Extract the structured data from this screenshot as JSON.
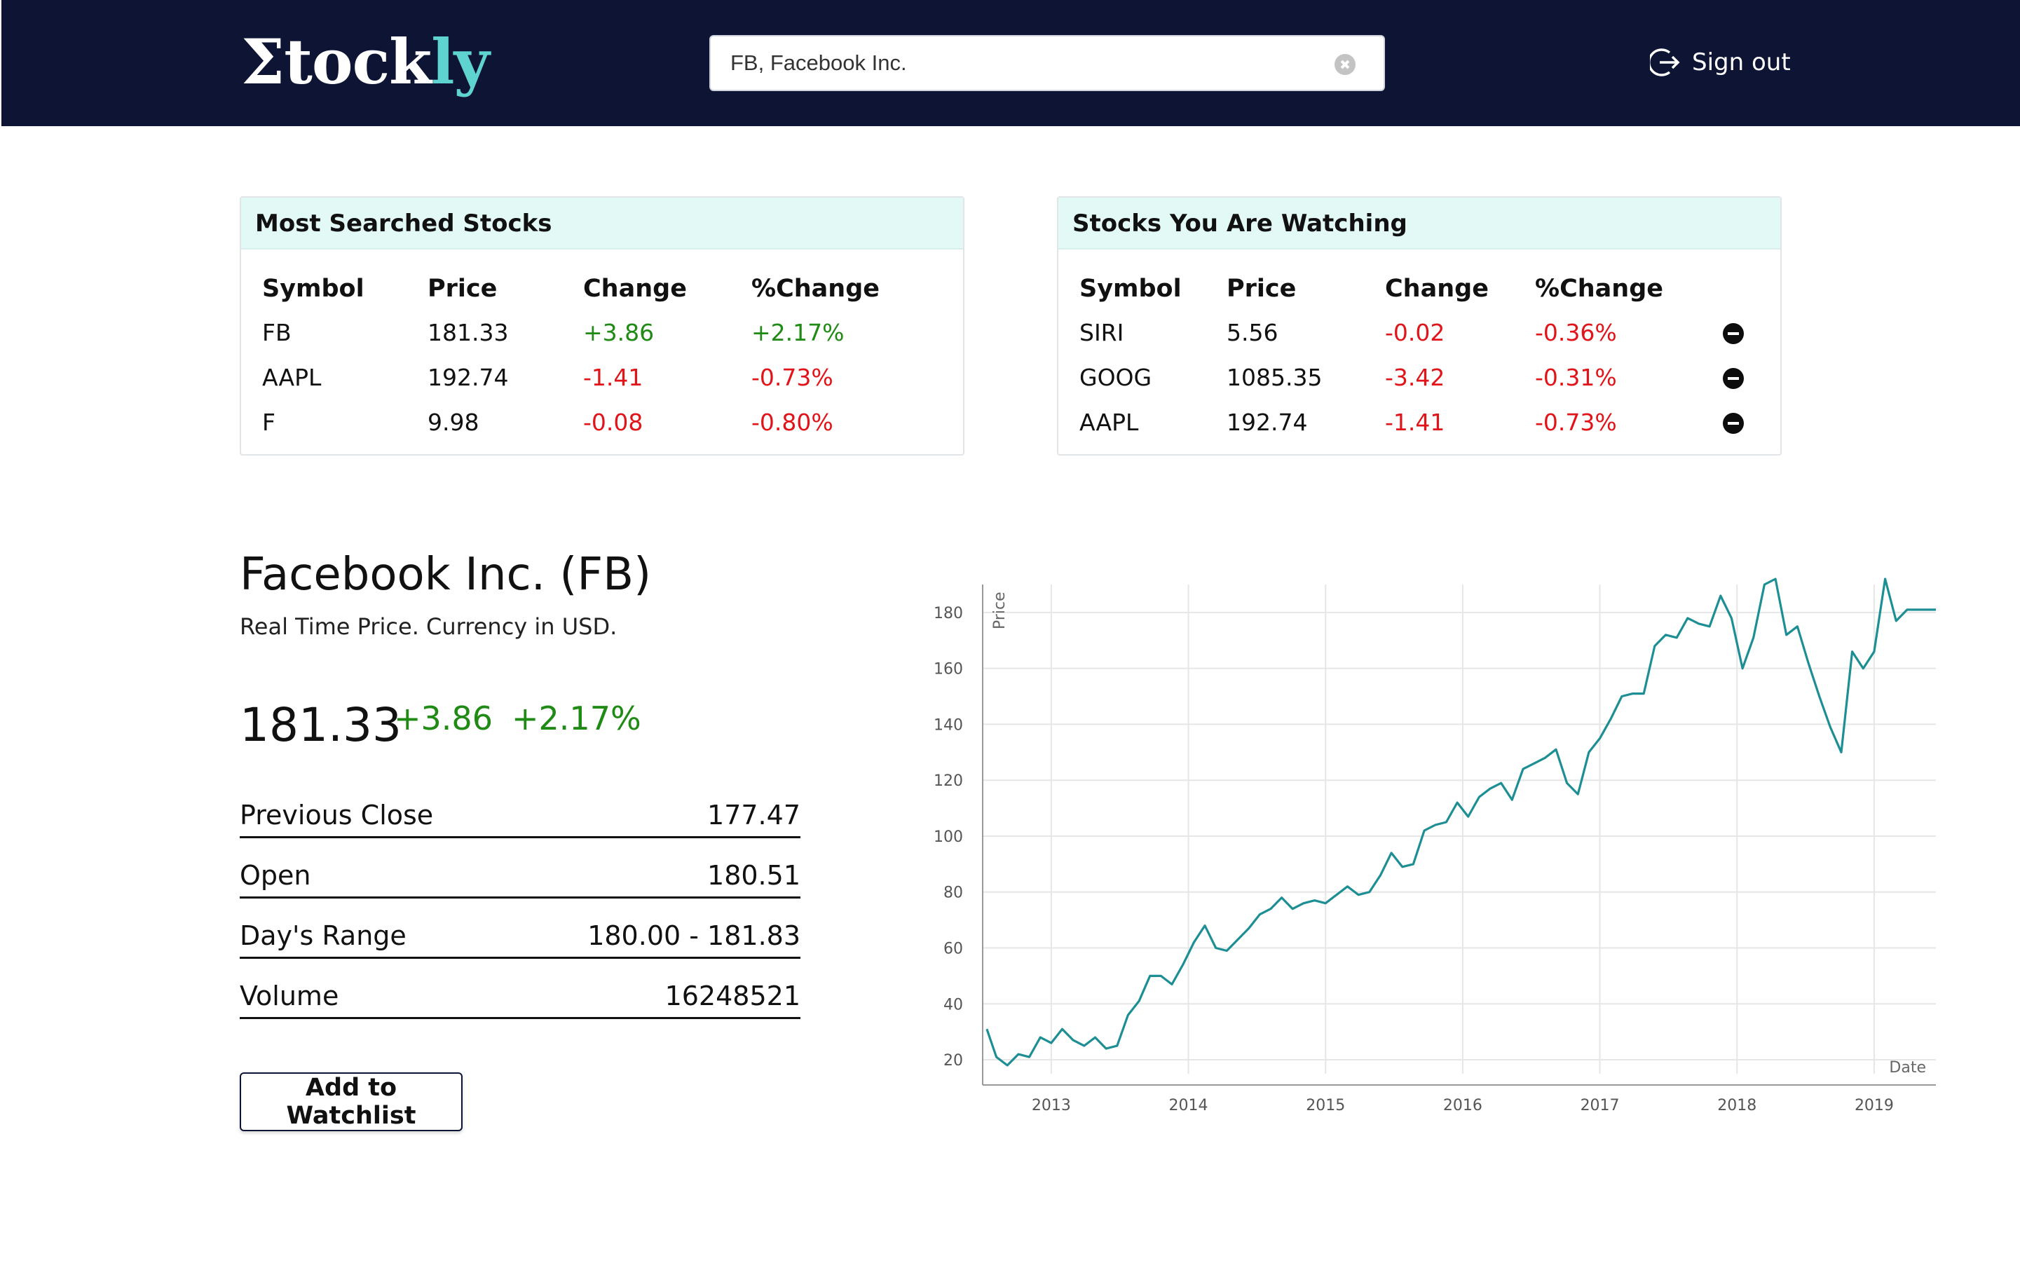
{
  "header": {
    "logo_part1": "Σtock",
    "logo_part2": "ly",
    "search_value": "FB, Facebook Inc.",
    "signout_label": "Sign out",
    "colors": {
      "bg": "#0e1534",
      "accent": "#5fd3d0"
    }
  },
  "most_searched": {
    "title": "Most Searched Stocks",
    "columns": [
      "Symbol",
      "Price",
      "Change",
      "%Change"
    ],
    "rows": [
      {
        "symbol": "FB",
        "price": "181.33",
        "change": "+3.86",
        "pct": "+2.17%"
      },
      {
        "symbol": "AAPL",
        "price": "192.74",
        "change": "-1.41",
        "pct": "-0.73%"
      },
      {
        "symbol": "F",
        "price": "9.98",
        "change": "-0.08",
        "pct": "-0.80%"
      }
    ]
  },
  "watching": {
    "title": "Stocks You Are Watching",
    "columns": [
      "Symbol",
      "Price",
      "Change",
      "%Change"
    ],
    "rows": [
      {
        "symbol": "SIRI",
        "price": "5.56",
        "change": "-0.02",
        "pct": "-0.36%"
      },
      {
        "symbol": "GOOG",
        "price": "1085.35",
        "change": "-3.42",
        "pct": "-0.31%"
      },
      {
        "symbol": "AAPL",
        "price": "192.74",
        "change": "-1.41",
        "pct": "-0.73%"
      }
    ]
  },
  "details": {
    "company": "Facebook Inc. (FB)",
    "subtitle": "Real Time Price. Currency in USD.",
    "price": "181.33",
    "change": "+3.86",
    "pct": "+2.17%",
    "stats": [
      {
        "label": "Previous Close",
        "value": "177.47"
      },
      {
        "label": "Open",
        "value": "180.51"
      },
      {
        "label": "Day's Range",
        "value": "180.00 - 181.83"
      },
      {
        "label": "Volume",
        "value": "16248521"
      }
    ],
    "watch_button": "Add to Watchlist"
  },
  "chart_data": {
    "type": "line",
    "xlabel": "Date",
    "ylabel": "Price",
    "xlim": [
      2012.5,
      2019.45
    ],
    "ylim": [
      15,
      190
    ],
    "yticks": [
      20,
      40,
      60,
      80,
      100,
      120,
      140,
      160,
      180
    ],
    "xticks": [
      "2013",
      "2014",
      "2015",
      "2016",
      "2017",
      "2018",
      "2019"
    ],
    "grid": true,
    "line_color": "#1d8f94",
    "series": [
      {
        "x": [
          2012.53,
          2012.6,
          2012.68,
          2012.76,
          2012.84,
          2012.92,
          2013.0,
          2013.08,
          2013.16,
          2013.24,
          2013.32,
          2013.4,
          2013.48,
          2013.56,
          2013.64,
          2013.72,
          2013.8,
          2013.88,
          2013.96,
          2014.04,
          2014.12,
          2014.2,
          2014.28,
          2014.36,
          2014.44,
          2014.52,
          2014.6,
          2014.68,
          2014.76,
          2014.84,
          2014.92,
          2015.0,
          2015.08,
          2015.16,
          2015.24,
          2015.32,
          2015.4,
          2015.48,
          2015.56,
          2015.64,
          2015.72,
          2015.8,
          2015.88,
          2015.96,
          2016.04,
          2016.12,
          2016.2,
          2016.28,
          2016.36,
          2016.44,
          2016.52,
          2016.6,
          2016.68,
          2016.76,
          2016.84,
          2016.92,
          2017.0,
          2017.08,
          2017.16,
          2017.24,
          2017.32,
          2017.4,
          2017.48,
          2017.56,
          2017.64,
          2017.72,
          2017.8,
          2017.88,
          2017.96,
          2018.04,
          2018.12,
          2018.2,
          2018.28,
          2018.36,
          2018.44,
          2018.52,
          2018.6,
          2018.68,
          2018.76,
          2018.84,
          2018.92,
          2019.0,
          2019.08,
          2019.16,
          2019.24,
          2019.32,
          2019.4,
          2019.45
        ],
        "y": [
          31,
          21,
          18,
          22,
          21,
          28,
          26,
          31,
          27,
          25,
          28,
          24,
          25,
          36,
          41,
          50,
          50,
          47,
          54,
          62,
          68,
          60,
          59,
          63,
          67,
          72,
          74,
          78,
          74,
          76,
          77,
          76,
          79,
          82,
          79,
          80,
          86,
          94,
          89,
          90,
          102,
          104,
          105,
          112,
          107,
          114,
          117,
          119,
          113,
          124,
          126,
          128,
          131,
          119,
          115,
          130,
          135,
          142,
          150,
          151,
          151,
          168,
          172,
          171,
          178,
          176,
          175,
          186,
          178,
          160,
          171,
          190,
          192,
          172,
          175,
          162,
          150,
          139,
          130,
          166,
          160,
          166,
          192,
          177,
          181,
          181,
          181,
          181
        ]
      }
    ]
  }
}
